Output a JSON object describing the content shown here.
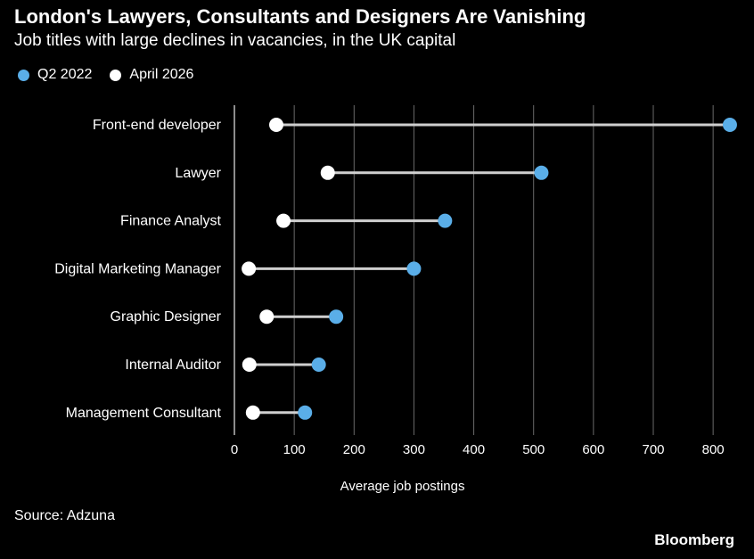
{
  "title": "London's Lawyers, Consultants and Designers Are Vanishing",
  "subtitle": "Job titles with large declines in vacancies, in the UK capital",
  "source": "Source: Adzuna",
  "brand": "Bloomberg",
  "colors": {
    "q2_2022": "#5aaee8",
    "april_2026": "#ffffff",
    "connector": "#cfcfcf",
    "grid": "#6a6a6a",
    "background": "#000000"
  },
  "chart_data": {
    "type": "dumbbell",
    "categories": [
      "Front-end developer",
      "Lawyer",
      "Finance Analyst",
      "Digital Marketing Manager",
      "Graphic Designer",
      "Internal Auditor",
      "Management Consultant"
    ],
    "series": [
      {
        "name": "Q2 2022",
        "values": [
          828,
          513,
          352,
          300,
          170,
          141,
          118
        ]
      },
      {
        "name": "April 2026",
        "values": [
          70,
          156,
          82,
          24,
          54,
          25,
          31
        ]
      }
    ],
    "xlabel": "Average job postings",
    "xlim": [
      0,
      840
    ],
    "xticks": [
      0,
      100,
      200,
      300,
      400,
      500,
      600,
      700,
      800
    ],
    "grid": true,
    "legend_position": "top-left"
  }
}
